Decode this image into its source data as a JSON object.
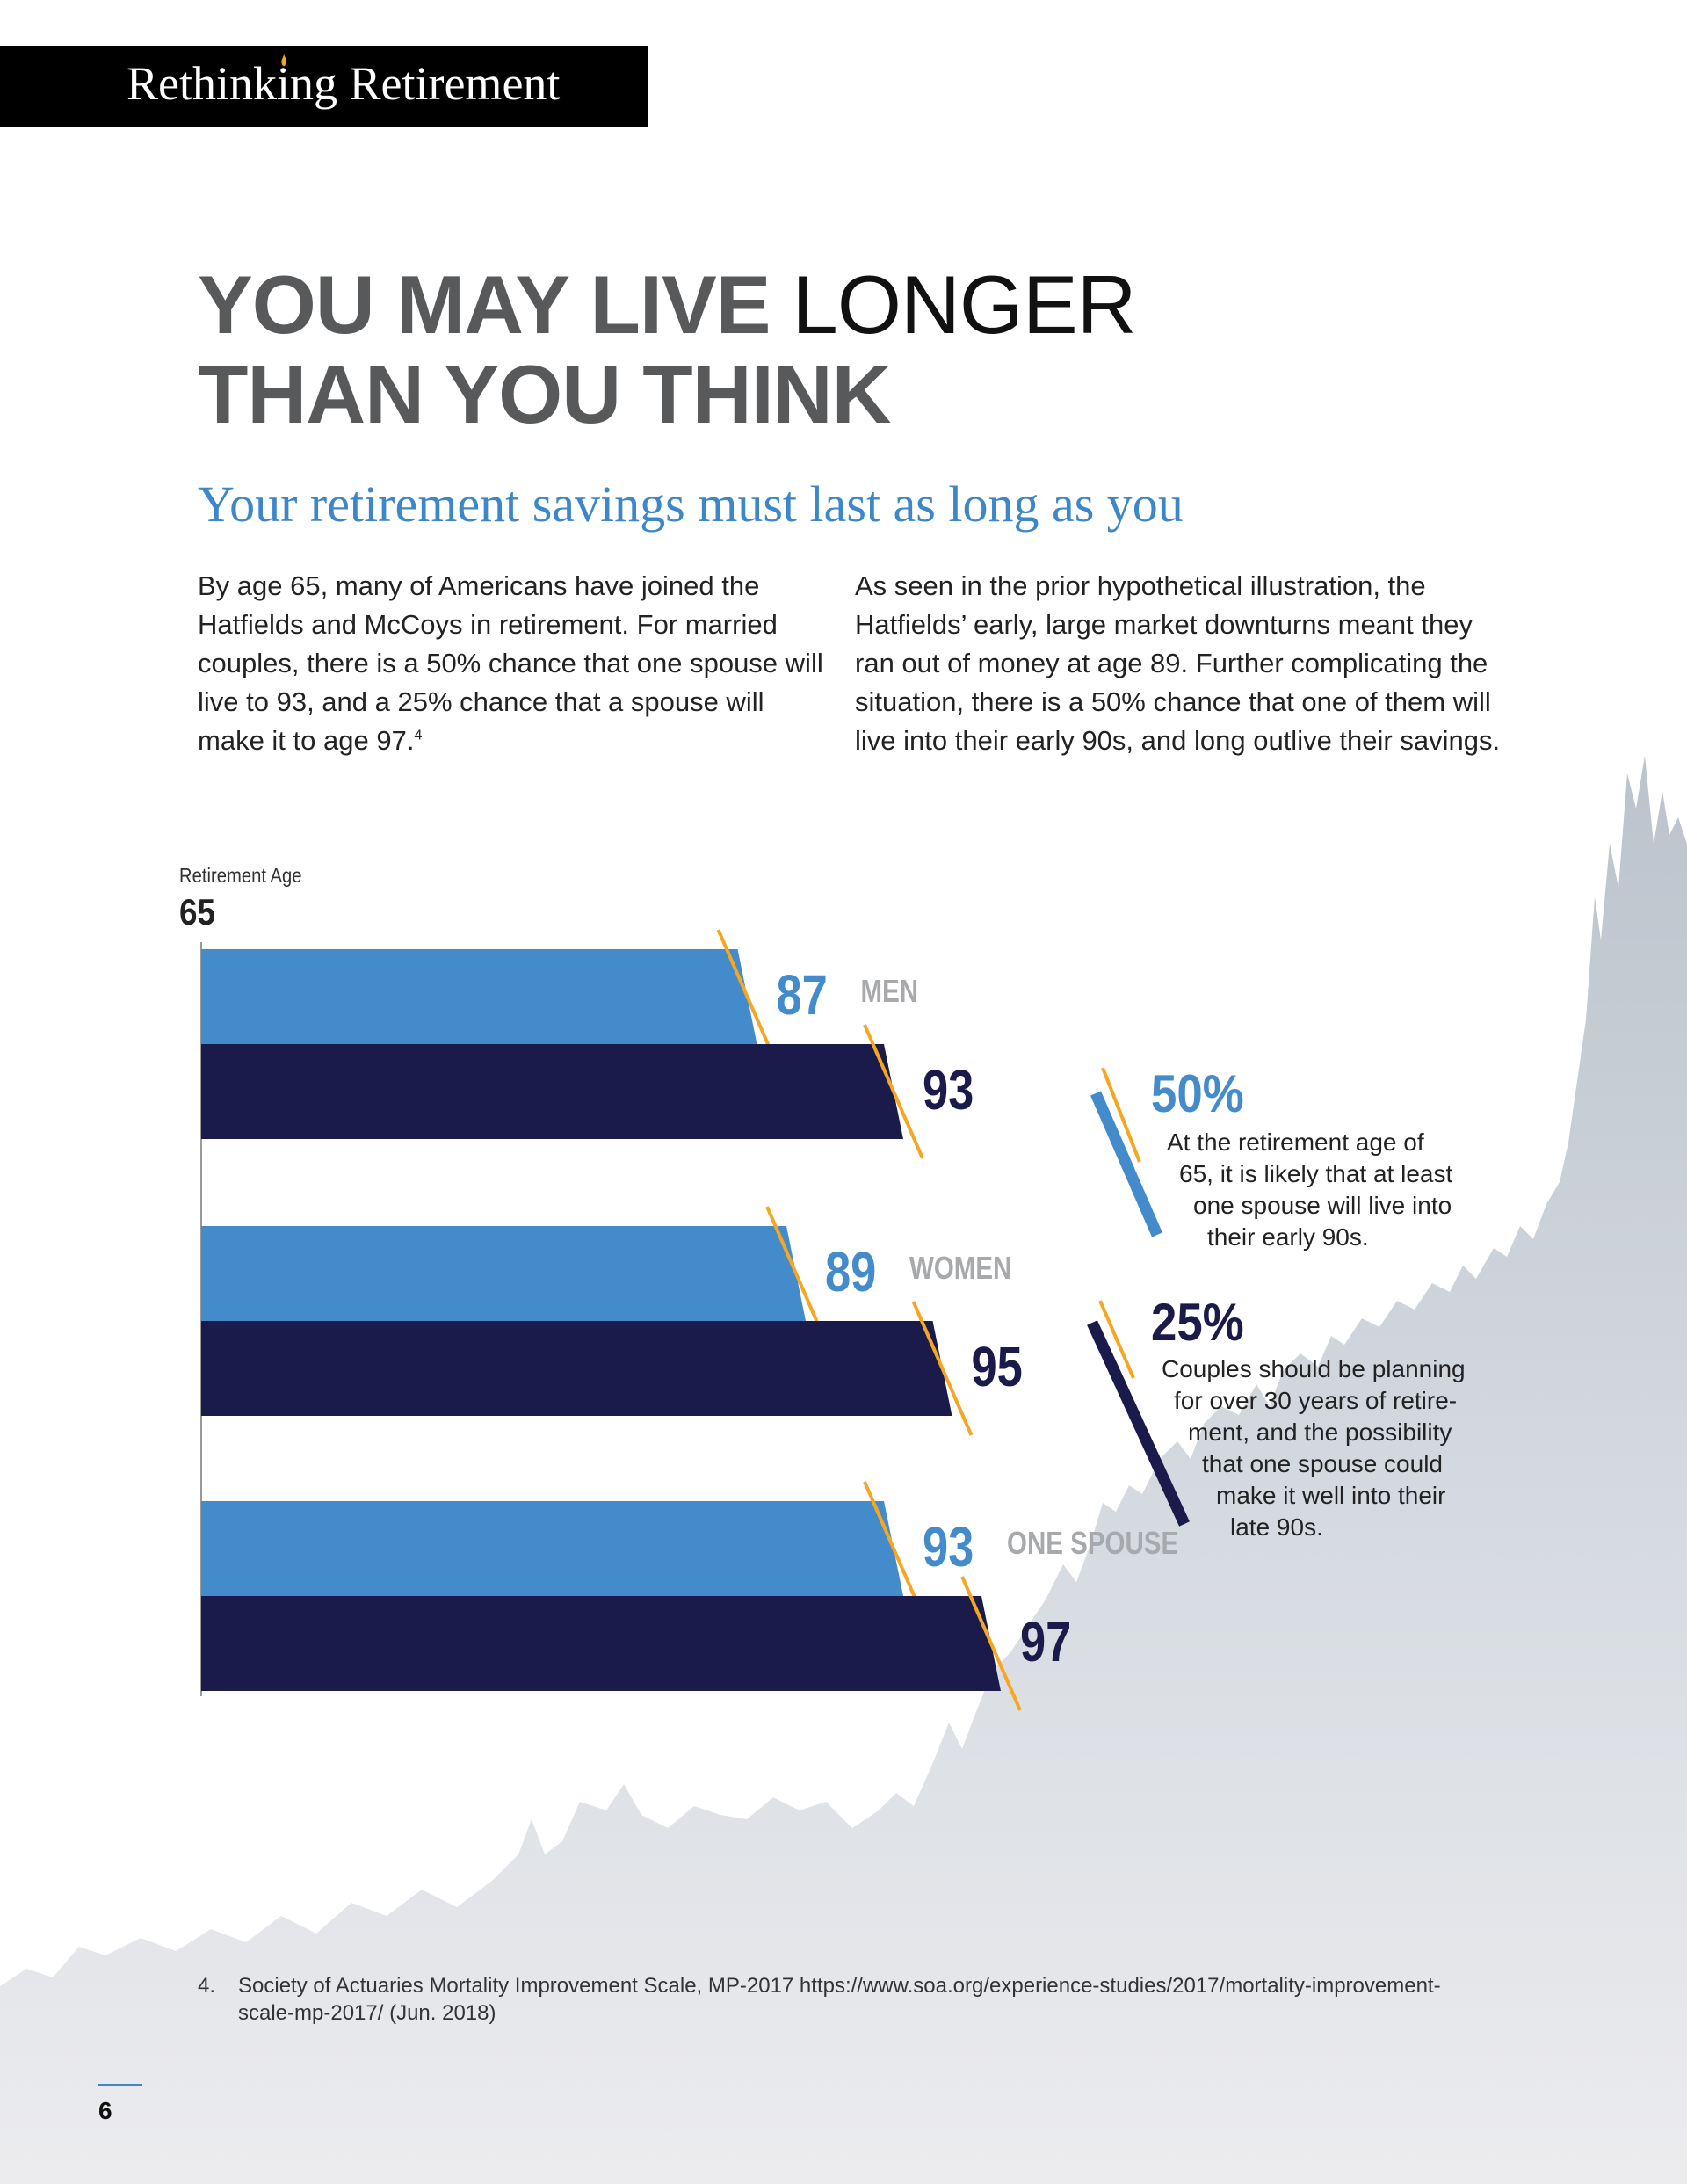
{
  "header": {
    "title": "Rethinking Retirement"
  },
  "headline": {
    "line1_bold": "YOU MAY LIVE",
    "line1_light": "LONGER",
    "line2": "THAN YOU THINK"
  },
  "subtitle": "Your retirement savings must last as long as you",
  "intro": {
    "left": "By age 65, many of Americans have joined the Hatfields and McCoys in retirement. For married couples, there is a 50% chance that one spouse will live to 93, and a 25% chance that a spouse will make it to age 97.",
    "left_footnote_ref": "4",
    "right": "As seen in the prior hypothetical illustration, the Hatfields’ early, large market downturns meant they ran out of money at age 89. Further complicating the situation, there is a 50% chance that one of them will live into their early 90s, and long outlive their savings."
  },
  "chart_data": {
    "type": "bar",
    "orientation": "horizontal",
    "axis_title": "Retirement Age",
    "start_value": "65",
    "categories": [
      "MEN",
      "WOMEN",
      "ONE SPOUSE"
    ],
    "series": [
      {
        "values": [
          87,
          89,
          93
        ],
        "color": "#438bcb"
      },
      {
        "values": [
          93,
          95,
          97
        ],
        "color": "#1b1b4b"
      }
    ],
    "data_labels": [
      [
        "87",
        "89",
        "93"
      ],
      [
        "93",
        "95",
        "97"
      ]
    ],
    "xlim": [
      65,
      97
    ],
    "accent_color": "#f5a623"
  },
  "stats": [
    {
      "pct": "50%",
      "color": "#438bcb",
      "lines": [
        "At the retirement age of",
        "65, it is likely that at least",
        "one spouse will live into",
        "their early 90s."
      ]
    },
    {
      "pct": "25%",
      "color": "#1b1b4b",
      "lines": [
        "Couples should be planning",
        "for over 30 years of retire-",
        "ment, and the possibility",
        "that one spouse could",
        "make it well into their",
        "late 90s."
      ]
    }
  ],
  "footnote": {
    "number": "4.",
    "text": "Society of Actuaries Mortality Improvement Scale, MP-2017 https://www.soa.org/experience-studies/2017/mortality-improvement-scale-mp-2017/ (Jun. 2018)"
  },
  "page_number": "6"
}
